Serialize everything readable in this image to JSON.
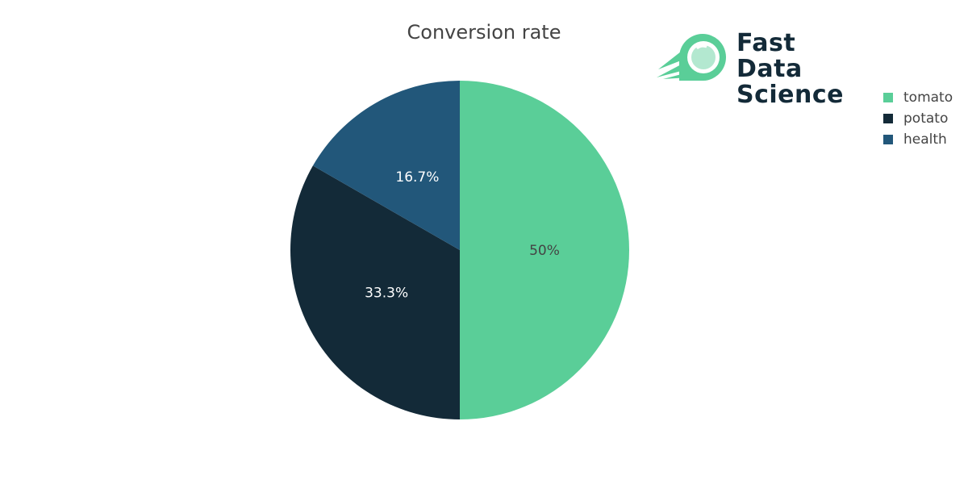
{
  "chart_data": {
    "type": "pie",
    "title": "Conversion rate",
    "labels": [
      "tomato",
      "potato",
      "health"
    ],
    "values": [
      50,
      33.3,
      16.7
    ],
    "slice_labels": [
      "50%",
      "33.3%",
      "16.7%"
    ],
    "colors": [
      "#5ace98",
      "#132a38",
      "#22577a"
    ],
    "label_colors": [
      "#444444",
      "#ffffff",
      "#ffffff"
    ],
    "legend_position": "top-right"
  },
  "logo": {
    "text_line1": "Fast Data",
    "text_line2": "Science"
  }
}
